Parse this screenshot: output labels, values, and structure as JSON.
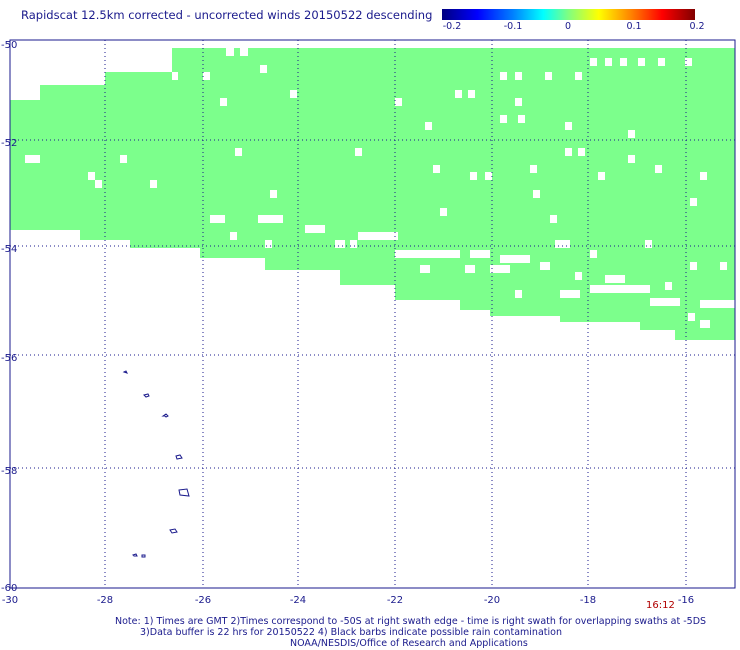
{
  "title": "Rapidscat 12.5km corrected - uncorrected winds 20150522 descending",
  "colorbar": {
    "labels": [
      "-0.2",
      "-0.1",
      "0",
      "0.1",
      "0.2"
    ],
    "colors": [
      "#000080",
      "#0000ff",
      "#00ffff",
      "#80ff80",
      "#ffff00",
      "#ff0000",
      "#800000"
    ]
  },
  "axes": {
    "lon_ticks": [
      "-30",
      "-28",
      "-26",
      "-24",
      "-22",
      "-20",
      "-18",
      "-16"
    ],
    "lat_ticks": [
      "-50",
      "-52",
      "-54",
      "-56",
      "-58",
      "-60"
    ]
  },
  "time_label": "16:12",
  "swath_color": "#7cff8c",
  "notes": {
    "line1": "Note: 1) Times are GMT 2)Times correspond to -50S at right swath edge - time is right swath for overlapping swaths at -5DS",
    "line2": "3)Data buffer is 22 hrs for 20150522 4) Black barbs indicate possible rain contamination",
    "line3": "NOAA/NESDIS/Office of Research and Applications"
  }
}
